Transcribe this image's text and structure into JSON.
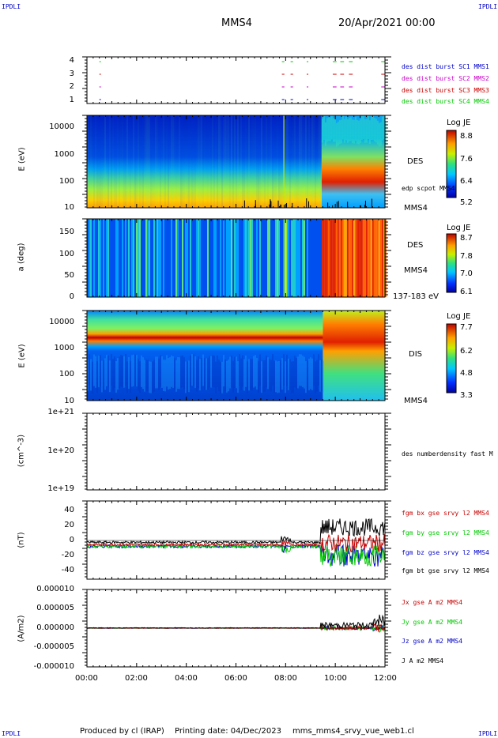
{
  "corners": {
    "tl": "IPDLI",
    "tr": "IPDLI",
    "bl": "IPDLI",
    "br": "IPDLI"
  },
  "header": {
    "spacecraft": "MMS4",
    "date": "20/Apr/2021 00:00"
  },
  "footer": {
    "produced": "Produced by cl (IRAP)",
    "printing": "Printing date: 04/Dec/2023",
    "file": "mms_mms4_srvy_vue_web1.cl"
  },
  "colors": {
    "blue": "#0000c8",
    "magenta": "#c800c8",
    "red": "#c80000",
    "green": "#00c800",
    "black": "#000000"
  },
  "chart_data": [
    {
      "type": "scatter",
      "panel": "availability",
      "yticks": [
        "4",
        "3",
        "2",
        "1"
      ],
      "legend": [
        {
          "text": "des dist burst SC1 MMS1",
          "color": "#0000c8"
        },
        {
          "text": "des dist burst SC2 MMS2",
          "color": "#c800c8"
        },
        {
          "text": "des dist burst SC3 MMS3",
          "color": "#c80000"
        },
        {
          "text": "des dist burst SC4 MMS4",
          "color": "#00c800"
        }
      ],
      "burst_intervals_hours": [
        [
          0.5,
          0.55
        ],
        [
          7.85,
          7.95
        ],
        [
          8.2,
          8.3
        ],
        [
          8.85,
          8.9
        ],
        [
          9.9,
          10.05
        ],
        [
          10.2,
          10.35
        ],
        [
          10.55,
          10.7
        ],
        [
          11.85,
          12.0
        ]
      ]
    },
    {
      "type": "heatmap",
      "panel": "DES energy spectrogram",
      "ylabel": "E (eV)",
      "yticks": [
        "10000",
        "1000",
        "100",
        "10"
      ],
      "labels": [
        "DES",
        "edp scpot MMS4",
        "MMS4"
      ],
      "colorbar": {
        "title": "Log JE",
        "ticks": [
          "8.8",
          "7.6",
          "6.4",
          "5.2"
        ]
      }
    },
    {
      "type": "heatmap",
      "panel": "DES pitch angle",
      "ylabel": "a (deg)",
      "yticks": [
        "150",
        "100",
        "50",
        "0"
      ],
      "labels": [
        "DES",
        "MMS4",
        "137-183 eV"
      ],
      "colorbar": {
        "title": "Log JE",
        "ticks": [
          "8.7",
          "7.8",
          "7.0",
          "6.1"
        ]
      }
    },
    {
      "type": "heatmap",
      "panel": "DIS energy spectrogram",
      "ylabel": "E (eV)",
      "yticks": [
        "10000",
        "1000",
        "100",
        "10"
      ],
      "labels": [
        "DIS",
        "MMS4"
      ],
      "colorbar": {
        "title": "Log JE",
        "ticks": [
          "7.7",
          "6.2",
          "4.8",
          "3.3"
        ]
      }
    },
    {
      "type": "line",
      "panel": "density",
      "ylabel": "(cm^-3)",
      "yticks": [
        "1e+21",
        "1e+20",
        "1e+19"
      ],
      "labels": [
        "des numberdensity fast M"
      ],
      "series": []
    },
    {
      "type": "line",
      "panel": "magnetic field",
      "ylabel": "(nT)",
      "yticks": [
        "40",
        "20",
        "0",
        "-20",
        "-40"
      ],
      "ylim": [
        -50,
        50
      ],
      "series": [
        {
          "name": "fgm bx gse srvy l2 MMS4",
          "color": "#c80000"
        },
        {
          "name": "fgm by gse srvy l2 MMS4",
          "color": "#00c800"
        },
        {
          "name": "fgm bz gse srvy l2 MMS4",
          "color": "#0000c8"
        },
        {
          "name": "fgm bt gse srvy l2 MMS4",
          "color": "#000000"
        }
      ]
    },
    {
      "type": "line",
      "panel": "current density",
      "ylabel": "(A/m2)",
      "yticks": [
        "0.000010",
        "0.000005",
        "0.000000",
        "-0.000005",
        "-0.000010"
      ],
      "ylim": [
        -1e-05,
        1e-05
      ],
      "series": [
        {
          "name": "Jx gse A m2 MMS4",
          "color": "#c80000"
        },
        {
          "name": "Jy gse A m2 MMS4",
          "color": "#00c800"
        },
        {
          "name": "Jz gse A m2 MMS4",
          "color": "#0000c8"
        },
        {
          "name": "J A m2 MMS4",
          "color": "#000000"
        }
      ]
    }
  ],
  "xaxis": {
    "ticks": [
      "00:00",
      "02:00",
      "04:00",
      "06:00",
      "08:00",
      "10:00",
      "12:00"
    ],
    "range_hours": [
      0,
      12
    ]
  }
}
